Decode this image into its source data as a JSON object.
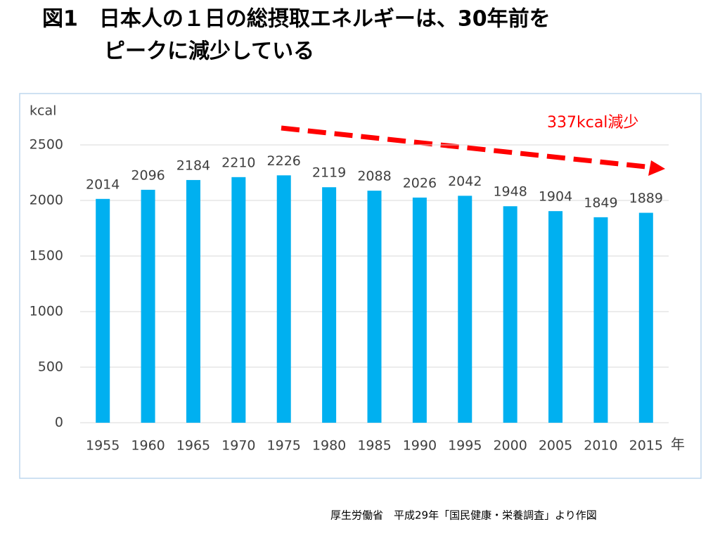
{
  "chart_data": {
    "type": "bar",
    "title": [
      "図1　日本人の１日の総摂取エネルギーは、30年前を",
      "ピークに減少している"
    ],
    "y_label": "kcal",
    "x_label": "年",
    "annotation": "337kcal減少",
    "source": "厚生労働省　平成29年「国民健康・栄養調査」より作図",
    "categories": [
      "1955",
      "1960",
      "1965",
      "1970",
      "1975",
      "1980",
      "1985",
      "1990",
      "1995",
      "2000",
      "2005",
      "2010",
      "2015"
    ],
    "values": [
      2014,
      2096,
      2184,
      2210,
      2226,
      2119,
      2088,
      2026,
      2042,
      1948,
      1904,
      1849,
      1889
    ],
    "color": "#00b0f0",
    "ylim": [
      0,
      2500
    ],
    "yticks": [
      0,
      500,
      1000,
      1500,
      2000,
      2500
    ],
    "grid": true
  }
}
